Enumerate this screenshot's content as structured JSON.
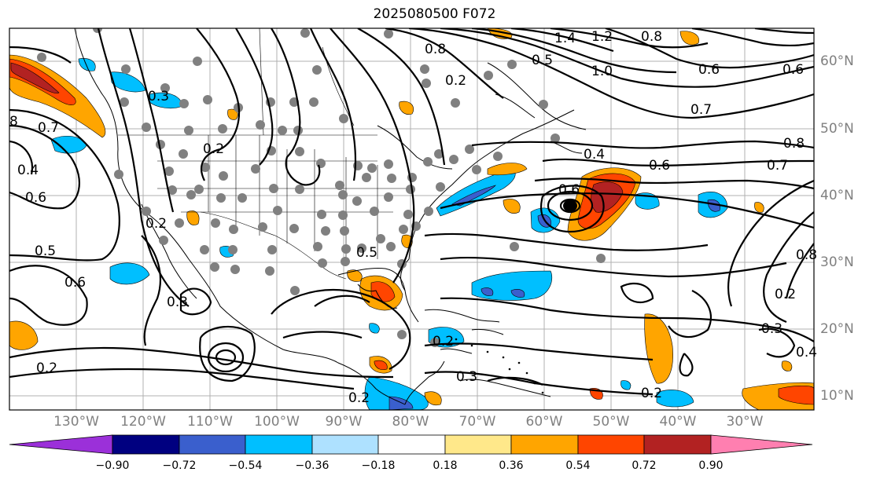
{
  "title": "2025080500 F072",
  "lon_labels": [
    "130°W",
    "120°W",
    "110°W",
    "100°W",
    "90°W",
    "80°W",
    "70°W",
    "60°W",
    "50°W",
    "40°W",
    "30°W"
  ],
  "lat_labels": [
    "60°N",
    "50°N",
    "40°N",
    "30°N",
    "20°N",
    "10°N"
  ],
  "contour_labels": [
    "0.8",
    "1.4",
    "1.2",
    "0.8",
    "0.5",
    "1.0",
    "0.6",
    "0.6",
    "0.7",
    "0.8",
    "0.7",
    "0.6",
    "0.6",
    "0.4",
    "0.2",
    "0.2",
    "0.3",
    "0.7",
    "0.4",
    "0.6",
    "0.5",
    "0.6",
    "0.3",
    "0.2",
    "0.2",
    "0.3",
    "0.2",
    "0.5",
    "0.2",
    "0.3",
    "0.4",
    "0.2",
    "0.8",
    "0.2",
    "8"
  ],
  "colorbar": {
    "ticks": [
      "−0.90",
      "−0.72",
      "−0.54",
      "−0.36",
      "−0.18",
      "0.18",
      "0.36",
      "0.54",
      "0.72",
      "0.90"
    ],
    "colors": [
      "#9b30d9",
      "#000080",
      "#3a5fcd",
      "#00bfff",
      "#aee1ff",
      "#ffffff",
      "#ffe88a",
      "#ffa500",
      "#ff4500",
      "#b22222",
      "#ff7fb0"
    ]
  }
}
